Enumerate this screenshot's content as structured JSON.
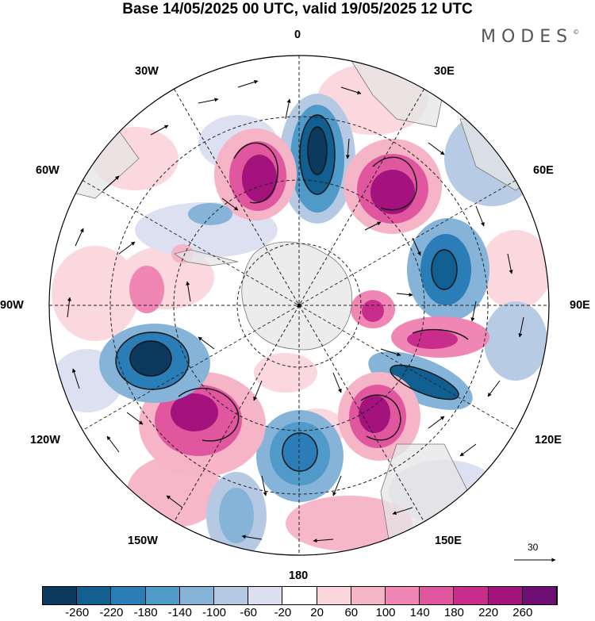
{
  "header": {
    "title": "Base 14/05/2025 00 UTC, valid 19/05/2025 12 UTC",
    "brand": "MODES",
    "brand_mark": "©"
  },
  "map": {
    "projection": "south-polar-stereographic",
    "longitude_labels": {
      "top": "0",
      "top_right": "30E",
      "right_upper": "60E",
      "right": "90E",
      "right_lower": "120E",
      "bottom_right": "150E",
      "bottom": "180",
      "bottom_left": "150W",
      "left_lower": "120W",
      "left": "90W",
      "left_upper": "60W",
      "top_left": "30W"
    },
    "vector_scale": {
      "value": "30",
      "icon": "arrow-right-icon"
    }
  },
  "colorbar": {
    "ticks": [
      "-260",
      "-220",
      "-180",
      "-140",
      "-100",
      "-60",
      "-20",
      "20",
      "60",
      "100",
      "140",
      "180",
      "220",
      "260"
    ],
    "colors": [
      "#0c3a5e",
      "#115f90",
      "#2a7db6",
      "#4f9ac8",
      "#86b4d8",
      "#b5c9e3",
      "#dcdff0",
      "#ffffff",
      "#fad6dc",
      "#f6b4c7",
      "#ef86b3",
      "#e1579f",
      "#c92d8c",
      "#a3127d",
      "#6f0e75"
    ]
  }
}
